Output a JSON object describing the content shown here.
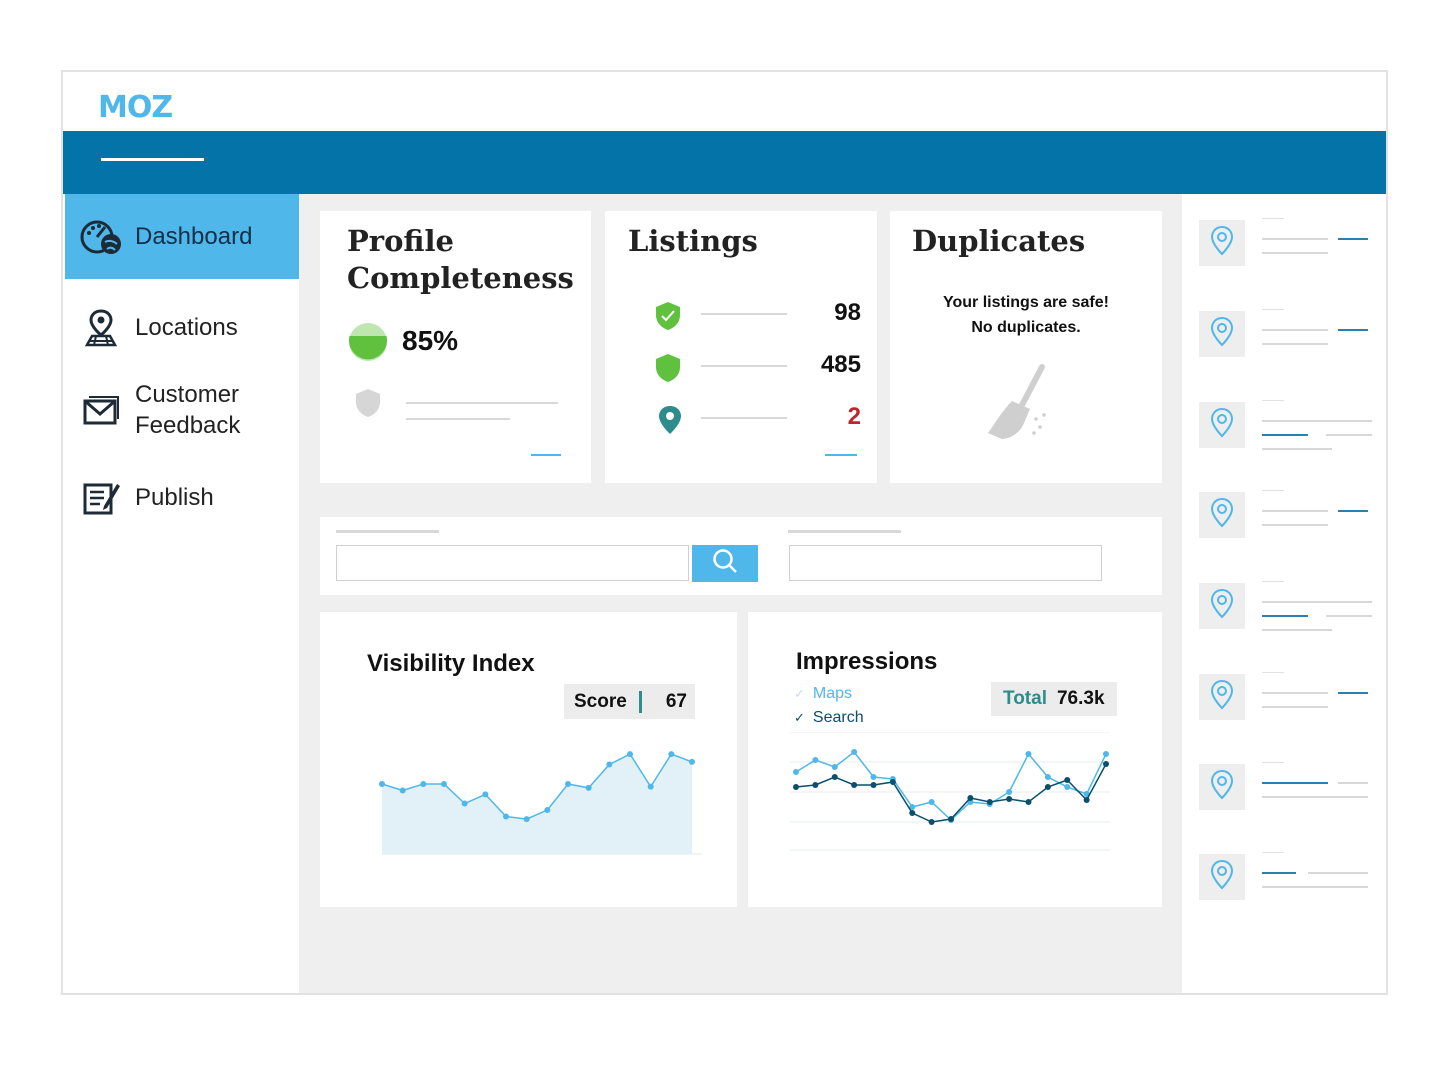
{
  "brand": {
    "logo_text": "MOZ"
  },
  "sidebar": {
    "items": [
      {
        "label": "Dashboard",
        "icon": "dashboard-gauge-icon",
        "active": true
      },
      {
        "label": "Locations",
        "icon": "location-pin-map-icon",
        "active": false
      },
      {
        "label": "Customer Feedback",
        "icon": "envelope-icon",
        "active": false
      },
      {
        "label": "Publish",
        "icon": "publish-edit-icon",
        "active": false
      }
    ]
  },
  "profile": {
    "title": "Profile Completeness",
    "percent_label": "85%",
    "percent_value": 85
  },
  "listings": {
    "title": "Listings",
    "rows": [
      {
        "icon": "shield-check-icon",
        "value": "98",
        "color": "#111111"
      },
      {
        "icon": "shield-icon",
        "value": "485",
        "color": "#111111"
      },
      {
        "icon": "map-pin-icon",
        "value": "2",
        "color": "#c0262d"
      }
    ]
  },
  "duplicates": {
    "title": "Duplicates",
    "message_line1": "Your listings are safe!",
    "message_line2": "No duplicates.",
    "icon": "broom-icon"
  },
  "visibility": {
    "title": "Visibility Index",
    "score_label": "Score",
    "score_value": "67"
  },
  "impressions": {
    "title": "Impressions",
    "legend": [
      {
        "label": "Maps",
        "checked": true,
        "color": "#4fb7e9"
      },
      {
        "label": "Search",
        "checked": true,
        "color": "#0b4f6c"
      }
    ],
    "total_label": "Total",
    "total_value": "76.3k"
  },
  "colors": {
    "accent": "#4fb7e9",
    "header": "#0373a8",
    "success": "#5fc13e",
    "alert": "#c0262d",
    "teal": "#2e8c8c"
  },
  "chart_data": [
    {
      "type": "area",
      "title": "Visibility Index",
      "series": [
        {
          "values": [
            60,
            55,
            60,
            60,
            45,
            52,
            35,
            33,
            40,
            60,
            57,
            75,
            83,
            58,
            83,
            77
          ]
        }
      ],
      "ylim": [
        0,
        100
      ]
    },
    {
      "type": "line",
      "title": "Impressions",
      "series": [
        {
          "name": "Maps",
          "values": [
            70,
            82,
            75,
            90,
            65,
            63,
            35,
            40,
            22,
            40,
            38,
            50,
            88,
            65,
            55,
            48,
            88
          ]
        },
        {
          "name": "Search",
          "values": [
            55,
            57,
            65,
            57,
            57,
            60,
            29,
            20,
            23,
            44,
            40,
            43,
            40,
            55,
            62,
            42,
            78
          ]
        }
      ],
      "ylim": [
        0,
        100
      ]
    }
  ]
}
